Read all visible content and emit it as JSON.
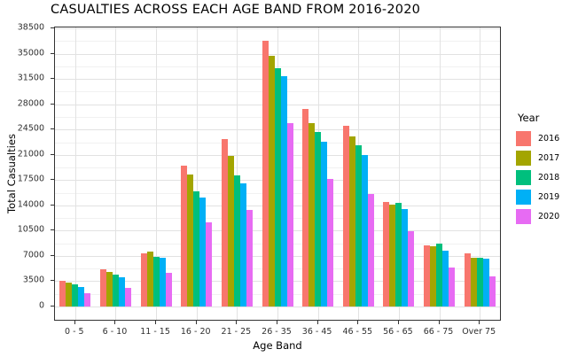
{
  "chart_data": {
    "type": "bar",
    "grouped": true,
    "title": "CASUALTIES ACROSS EACH AGE BAND FROM 2016-2020",
    "xlabel": "Age Band",
    "ylabel": "Total Casualties",
    "legend_title": "Year",
    "legend_position": "right",
    "grid": true,
    "categories": [
      "0 - 5",
      "6 - 10",
      "11 - 15",
      "16 - 20",
      "21 - 25",
      "26 - 35",
      "36 - 45",
      "46 - 55",
      "56 - 65",
      "66 - 75",
      "Over 75"
    ],
    "series": [
      {
        "name": "2016",
        "color": "#F8766D",
        "values": [
          3500,
          5100,
          7300,
          19500,
          23200,
          36800,
          27300,
          25000,
          14500,
          8500,
          7400
        ]
      },
      {
        "name": "2017",
        "color": "#A3A500",
        "values": [
          3300,
          4800,
          7650,
          18300,
          20900,
          34700,
          25400,
          23600,
          14100,
          8300,
          6750
        ]
      },
      {
        "name": "2018",
        "color": "#00BF7D",
        "values": [
          3100,
          4400,
          6900,
          15900,
          18100,
          33000,
          24200,
          22300,
          14300,
          8650,
          6700
        ]
      },
      {
        "name": "2019",
        "color": "#00B0F6",
        "values": [
          2700,
          4100,
          6800,
          15100,
          17000,
          31900,
          22800,
          21000,
          13500,
          7700,
          6600
        ]
      },
      {
        "name": "2020",
        "color": "#E76BF3",
        "values": [
          1900,
          2600,
          4700,
          11600,
          13400,
          25400,
          17650,
          15600,
          10400,
          5400,
          4200
        ]
      }
    ],
    "y_ticks": [
      0,
      3500,
      7000,
      10500,
      14000,
      17500,
      21000,
      24500,
      28000,
      31500,
      35000,
      38500
    ],
    "y_minor_ticks": [
      1750,
      5250,
      8750,
      12250,
      15750,
      19250,
      22750,
      26250,
      29750,
      33250,
      36750
    ],
    "ylim": [
      -1840,
      38640
    ]
  }
}
